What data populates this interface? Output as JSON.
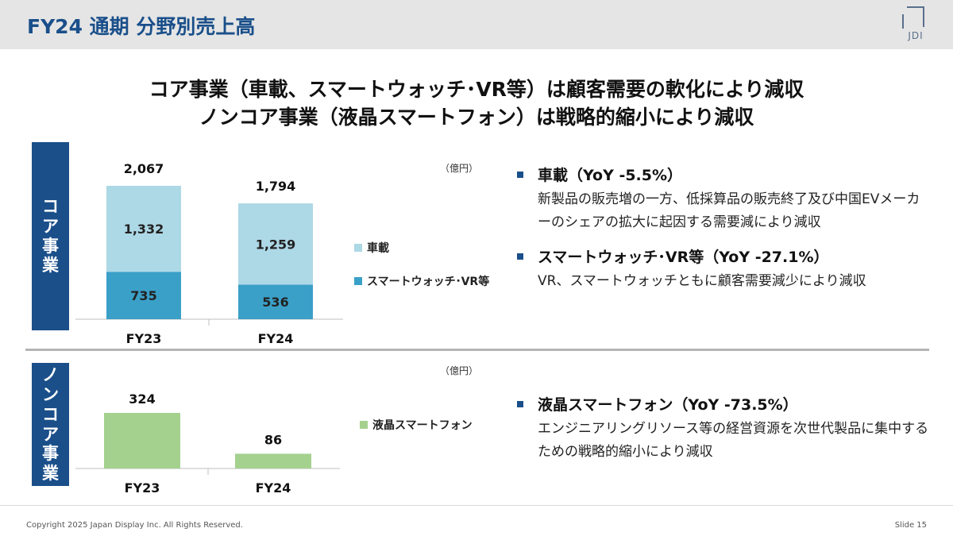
{
  "header": {
    "title": "FY24 通期 分野別売上高",
    "logo_text": "JDI"
  },
  "headline": {
    "line1": "コア事業（車載、スマートウォッチ･VR等）は顧客需要の軟化により減収",
    "line2": "ノンコア事業（液晶スマートフォン）は戦略的縮小により減収"
  },
  "sections": {
    "core_label": [
      "コ",
      "ア",
      "事",
      "業"
    ],
    "noncore_label": [
      "ノ",
      "ン",
      "コ",
      "ア",
      "事",
      "業"
    ]
  },
  "units": {
    "core": "（億円）",
    "noncore": "（億円）"
  },
  "legend": {
    "automotive": "車載",
    "smartwatch_vr": "スマートウォッチ･VR等",
    "lcd_smartphone": "液晶スマートフォン"
  },
  "colors": {
    "accent": "#1a4f8a",
    "automotive": "#add8e6",
    "smartwatch_vr": "#3aa0c8",
    "lcd_smartphone": "#a4d18e",
    "header_bg": "#e5e5e5"
  },
  "chart_data": [
    {
      "type": "bar",
      "stacked": true,
      "categories": [
        "FY23",
        "FY24"
      ],
      "series": [
        {
          "name": "スマートウォッチ･VR等",
          "values": [
            735,
            536
          ]
        },
        {
          "name": "車載",
          "values": [
            1332,
            1259
          ]
        }
      ],
      "totals": [
        2067,
        1794
      ],
      "value_labels": {
        "smartwatch_vr": [
          "735",
          "536"
        ],
        "automotive": [
          "1,332",
          "1,259"
        ],
        "totals": [
          "2,067",
          "1,794"
        ]
      },
      "ylim": [
        0,
        2067
      ],
      "legend_position": "right"
    },
    {
      "type": "bar",
      "categories": [
        "FY23",
        "FY24"
      ],
      "series": [
        {
          "name": "液晶スマートフォン",
          "values": [
            324,
            86
          ]
        }
      ],
      "value_labels": [
        "324",
        "86"
      ],
      "ylim": [
        0,
        324
      ],
      "legend_position": "right"
    }
  ],
  "notes": {
    "automotive": {
      "title": "車載（YoY -5.5%）",
      "body": "新製品の販売増の一方、低採算品の販売終了及び中国EVメーカーのシェアの拡大に起因する需要減により減収"
    },
    "smartwatch_vr": {
      "title": "スマートウォッチ･VR等（YoY -27.1%）",
      "body": "VR、スマートウォッチともに顧客需要減少により減収"
    },
    "lcd_smartphone": {
      "title": "液晶スマートフォン（YoY -73.5%）",
      "body": "エンジニアリングリソース等の経営資源を次世代製品に集中するための戦略的縮小により減収"
    }
  },
  "footer": {
    "copyright": "Copyright 2025 Japan Display Inc. All Rights Reserved.",
    "slide": "Slide 15"
  }
}
